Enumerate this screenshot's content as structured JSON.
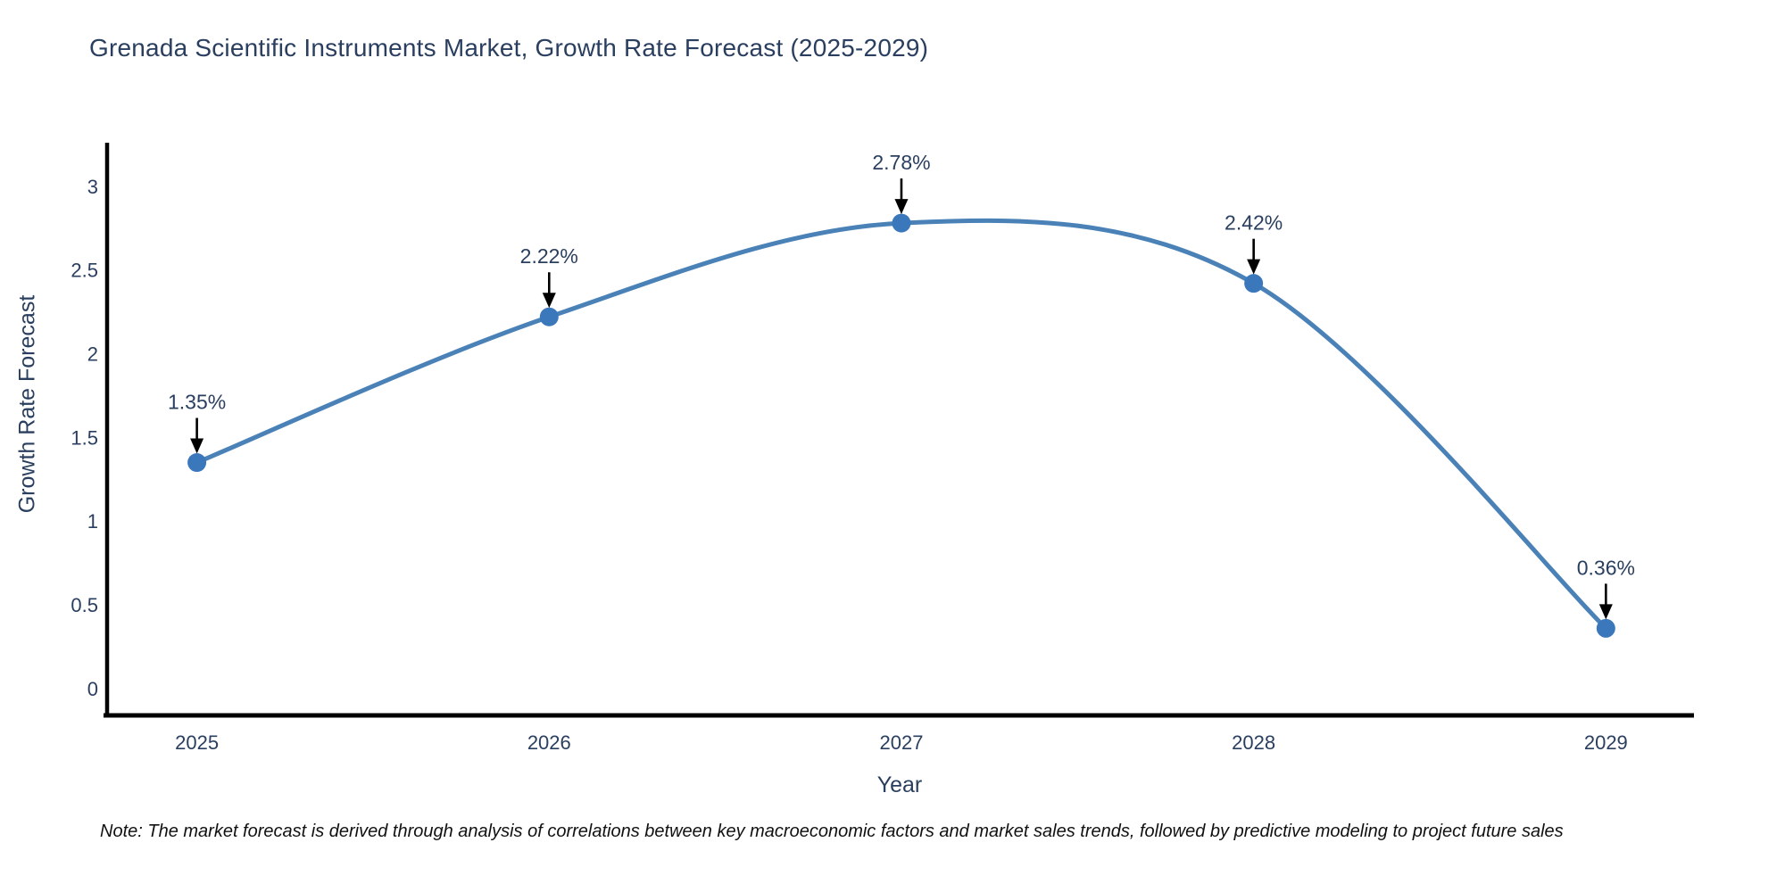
{
  "figure": {
    "title": "Grenada Scientific Instruments Market, Growth Rate Forecast (2025-2029)",
    "note": "Note: The market forecast is derived through analysis of correlations between key macroeconomic factors and market sales trends, followed by predictive modeling to project future sales"
  },
  "chart_data": {
    "type": "line",
    "title": "Grenada Scientific Instruments Market, Growth Rate Forecast (2025-2029)",
    "x": [
      2025,
      2026,
      2027,
      2028,
      2029
    ],
    "values": [
      1.35,
      2.22,
      2.78,
      2.42,
      0.36
    ],
    "point_labels": [
      "1.35%",
      "2.22%",
      "2.78%",
      "2.42%",
      "0.36%"
    ],
    "xlabel": "Year",
    "ylabel": "Growth Rate Forecast",
    "xlim": [
      2024.74,
      2029.25
    ],
    "ylim": [
      -0.16,
      3.26
    ],
    "xticks": {
      "values": [
        2025,
        2026,
        2027,
        2028,
        2029
      ],
      "labels": [
        "2025",
        "2026",
        "2027",
        "2028",
        "2029"
      ]
    },
    "yticks": {
      "values": [
        0,
        0.5,
        1,
        1.5,
        2,
        2.5,
        3
      ],
      "labels": [
        "0",
        "0.5",
        "1",
        "1.5",
        "2",
        "2.5",
        "3"
      ]
    },
    "grid": false,
    "legend": "none",
    "line_shape": "spline",
    "marker": "circle",
    "annotation_arrows": true,
    "colors": {
      "line": "#4a82b8",
      "marker": "#3b78bb",
      "axis_line": "#000000",
      "text": "#2a3f5f",
      "annotation_arrow": "#000000",
      "note_text": "#111111",
      "background": "#ffffff"
    }
  }
}
